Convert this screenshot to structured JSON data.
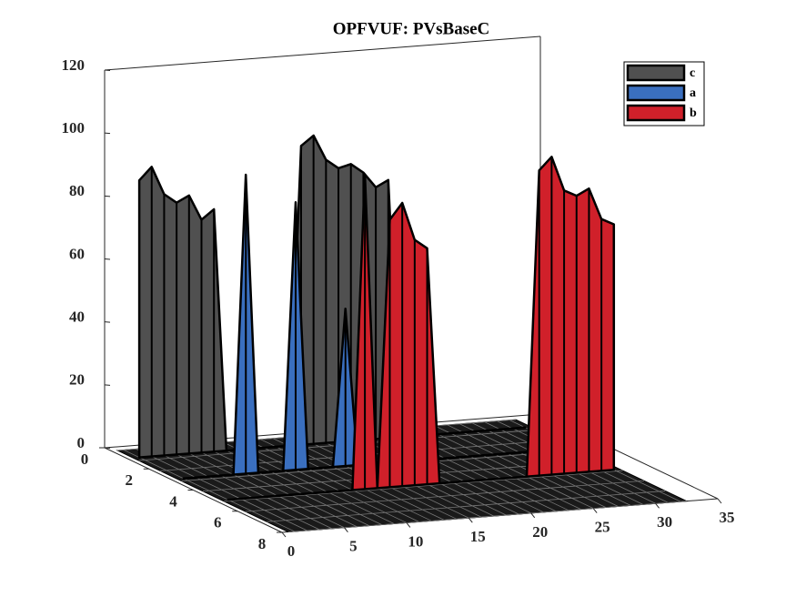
{
  "chart_data": {
    "type": "ribbon3d",
    "title": "OPFVUF: PVsBaseC",
    "x": [
      1,
      2,
      3,
      4,
      5,
      6,
      7,
      8,
      9,
      10,
      11,
      12,
      13,
      14,
      15,
      16,
      17,
      18,
      19,
      20,
      21,
      22,
      23,
      24,
      25,
      26,
      27,
      28,
      29,
      30,
      31,
      32
    ],
    "series": [
      {
        "name": "c",
        "color": "#505050",
        "y": 1,
        "values": [
          88,
          92,
          83,
          80,
          82,
          74,
          77,
          0,
          0,
          0,
          0,
          0,
          0,
          95,
          98,
          90,
          87,
          88,
          85,
          80,
          82,
          0,
          0,
          0,
          0,
          0,
          0,
          0,
          0,
          0,
          0,
          0
        ]
      },
      {
        "name": "a",
        "color": "#3a6fbf",
        "y": 3,
        "values": [
          0,
          0,
          0,
          0,
          0,
          95,
          0,
          0,
          0,
          85,
          0,
          0,
          0,
          50,
          0,
          0,
          0,
          0,
          0,
          40,
          0,
          0,
          0,
          0,
          0,
          0,
          0,
          0,
          0,
          0,
          0,
          0
        ]
      },
      {
        "name": "b",
        "color": "#d0202a",
        "y": 5,
        "values": [
          0,
          0,
          0,
          0,
          0,
          0,
          0,
          0,
          0,
          0,
          0,
          100,
          0,
          85,
          90,
          78,
          75,
          0,
          0,
          0,
          0,
          0,
          0,
          0,
          0,
          97,
          101,
          90,
          88,
          90,
          80,
          78
        ]
      }
    ],
    "xlim": [
      0,
      35
    ],
    "xticks": [
      0,
      5,
      10,
      15,
      20,
      25,
      30,
      35
    ],
    "ylim": [
      0,
      8
    ],
    "yticks": [
      0,
      2,
      4,
      6,
      8
    ],
    "zlim": [
      0,
      120
    ],
    "zticks": [
      0,
      20,
      40,
      60,
      80,
      100,
      120
    ],
    "legend": "upper right"
  }
}
